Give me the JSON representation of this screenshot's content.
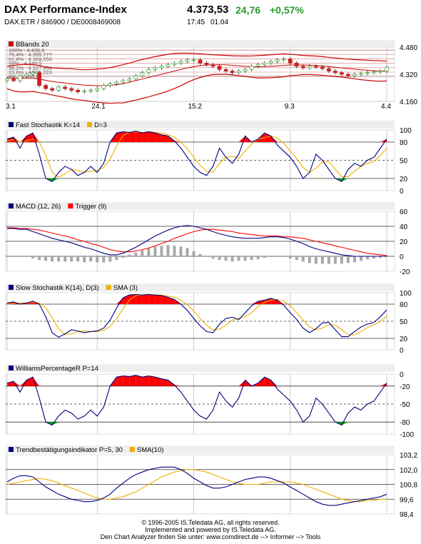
{
  "header": {
    "title": "DAX Performance-Index",
    "subtitle": "DAX.ETR  /  846900  /  DE0008469008",
    "last": "4.373,53",
    "change": "24,76",
    "change_pct": "+0,57%",
    "time": "17:45",
    "date": "01.04"
  },
  "footer": {
    "line1": "© 1996-2005 IS.Teledata AG, all rights reserved.",
    "line2": "Implemented and powered by IS.Teledata AG.",
    "line3": "Den Chart Analyzer finden Sie unter: www.comdirect.de --> Informer --> Tools"
  },
  "colors": {
    "panel_bg": "#eeeeee",
    "grid": "#cccccc",
    "blue": "#000080",
    "red": "#ff0000",
    "orange": "#f0b000",
    "green": "#00aa00",
    "darkred": "#cc0000",
    "bar_gray": "#a8a8a8",
    "candle_green": "#4cb24c",
    "candle_red": "#cc2020"
  },
  "chart_data": [
    {
      "type": "candlestick",
      "legend": [
        {
          "name": "BBands 20",
          "color": "#cc0000"
        }
      ],
      "ylim": [
        4160,
        4500
      ],
      "yticks": [
        "4.480",
        "4.320",
        "4.160"
      ],
      "xticks": [
        "3.1",
        "24.1",
        "15.2",
        "9.3",
        "4.4"
      ],
      "x_tick_index": [
        0,
        14,
        29,
        44,
        59
      ],
      "annotations": [
        "100% : 4.436,6",
        "76,4% : 4.395,777",
        "61,8% : 4.369,550",
        "50% : 4.348,5",
        "38,2% : 4.327,950",
        "23,6% : 4.301,223",
        "0% : 4.260,8"
      ],
      "close": [
        4300,
        4290,
        4320,
        4330,
        4340,
        4260,
        4240,
        4230,
        4250,
        4240,
        4230,
        4220,
        4225,
        4230,
        4240,
        4260,
        4270,
        4280,
        4290,
        4300,
        4320,
        4340,
        4360,
        4370,
        4380,
        4390,
        4400,
        4410,
        4420,
        4420,
        4400,
        4390,
        4380,
        4360,
        4350,
        4340,
        4350,
        4360,
        4380,
        4390,
        4400,
        4410,
        4420,
        4425,
        4400,
        4380,
        4370,
        4380,
        4375,
        4365,
        4350,
        4340,
        4330,
        4320,
        4330,
        4335,
        4340,
        4345,
        4350,
        4374
      ],
      "bb_upper": [
        4380,
        4385,
        4390,
        4392,
        4390,
        4385,
        4375,
        4370,
        4368,
        4365,
        4365,
        4360,
        4358,
        4360,
        4362,
        4365,
        4372,
        4380,
        4390,
        4400,
        4412,
        4422,
        4432,
        4440,
        4448,
        4455,
        4460,
        4462,
        4462,
        4460,
        4458,
        4455,
        4452,
        4450,
        4448,
        4446,
        4445,
        4444,
        4445,
        4447,
        4449,
        4452,
        4455,
        4458,
        4455,
        4452,
        4448,
        4446,
        4444,
        4440,
        4436,
        4432,
        4428,
        4425,
        4422,
        4420,
        4418,
        4416,
        4414,
        4412
      ],
      "bb_mid": [
        4310,
        4305,
        4305,
        4306,
        4306,
        4300,
        4292,
        4285,
        4280,
        4275,
        4270,
        4265,
        4262,
        4260,
        4258,
        4258,
        4260,
        4265,
        4270,
        4280,
        4290,
        4300,
        4310,
        4320,
        4330,
        4340,
        4350,
        4360,
        4370,
        4378,
        4384,
        4388,
        4390,
        4390,
        4389,
        4386,
        4383,
        4380,
        4378,
        4377,
        4378,
        4380,
        4383,
        4386,
        4388,
        4388,
        4388,
        4387,
        4385,
        4382,
        4378,
        4374,
        4370,
        4366,
        4362,
        4358,
        4355,
        4352,
        4350,
        4350
      ],
      "bb_lower": [
        4240,
        4225,
        4220,
        4220,
        4222,
        4215,
        4209,
        4200,
        4192,
        4185,
        4175,
        4170,
        4166,
        4160,
        4154,
        4151,
        4148,
        4150,
        4150,
        4160,
        4168,
        4178,
        4188,
        4200,
        4212,
        4225,
        4240,
        4258,
        4278,
        4296,
        4310,
        4321,
        4328,
        4330,
        4330,
        4326,
        4321,
        4316,
        4311,
        4307,
        4307,
        4308,
        4311,
        4314,
        4321,
        4324,
        4328,
        4328,
        4326,
        4324,
        4320,
        4316,
        4312,
        4307,
        4302,
        4296,
        4292,
        4288,
        4286,
        4288
      ]
    },
    {
      "type": "line",
      "legend": [
        {
          "name": "Fast Stochastik K=14",
          "color": "#000080"
        },
        {
          "name": "D=3",
          "color": "#f0b000"
        }
      ],
      "ylim": [
        0,
        100
      ],
      "yticks": [
        "100",
        "80",
        "50",
        "20",
        "0"
      ],
      "levels": [
        80,
        50,
        20
      ],
      "series": [
        {
          "name": "K",
          "values": [
            85,
            88,
            70,
            90,
            95,
            60,
            20,
            15,
            30,
            40,
            35,
            25,
            30,
            40,
            30,
            45,
            80,
            95,
            97,
            96,
            98,
            95,
            97,
            95,
            92,
            90,
            82,
            70,
            55,
            40,
            30,
            25,
            40,
            70,
            55,
            45,
            60,
            90,
            80,
            85,
            95,
            90,
            75,
            65,
            55,
            40,
            20,
            30,
            60,
            50,
            35,
            20,
            15,
            35,
            45,
            40,
            50,
            55,
            70,
            85
          ]
        },
        {
          "name": "D",
          "values": [
            82,
            84,
            80,
            82,
            85,
            80,
            58,
            30,
            22,
            28,
            35,
            33,
            30,
            32,
            33,
            38,
            52,
            73,
            91,
            96,
            97,
            96,
            97,
            96,
            95,
            92,
            88,
            80,
            69,
            55,
            42,
            32,
            30,
            45,
            55,
            57,
            53,
            65,
            77,
            85,
            87,
            90,
            87,
            78,
            65,
            53,
            38,
            30,
            37,
            47,
            48,
            35,
            23,
            23,
            32,
            40,
            45,
            48,
            58,
            70
          ]
        }
      ]
    },
    {
      "type": "line",
      "legend": [
        {
          "name": "MACD (12, 26)",
          "color": "#000080"
        },
        {
          "name": "Trigger (9)",
          "color": "#ff0000"
        }
      ],
      "ylim": [
        -20,
        60
      ],
      "yticks": [
        "60",
        "40",
        "20",
        "0",
        "-20"
      ],
      "levels": [
        40,
        20,
        0
      ],
      "series": [
        {
          "name": "MACD",
          "values": [
            37,
            37,
            36,
            36,
            33,
            30,
            27,
            24,
            22,
            20,
            18,
            15,
            12,
            10,
            7,
            4,
            2,
            2,
            4,
            8,
            12,
            17,
            22,
            27,
            31,
            35,
            38,
            40,
            41,
            40,
            38,
            36,
            33,
            30,
            28,
            26,
            25,
            24,
            24,
            24,
            25,
            26,
            26,
            25,
            23,
            20,
            17,
            13,
            10,
            8,
            6,
            4,
            2,
            1,
            0,
            0,
            0,
            0,
            0,
            0
          ]
        },
        {
          "name": "Trigger",
          "values": [
            38,
            38,
            37,
            37,
            36,
            35,
            33,
            31,
            29,
            27,
            25,
            22,
            20,
            17,
            15,
            12,
            9,
            7,
            6,
            6,
            7,
            9,
            11,
            14,
            17,
            20,
            24,
            27,
            30,
            33,
            35,
            36,
            36,
            35,
            34,
            33,
            31,
            30,
            29,
            28,
            27,
            27,
            27,
            26,
            26,
            25,
            24,
            22,
            20,
            18,
            16,
            14,
            12,
            10,
            8,
            6,
            4,
            3,
            2,
            1
          ]
        },
        {
          "name": "Histogram",
          "values": [
            -1,
            -1,
            -1,
            -1,
            -3,
            -5,
            -6,
            -7,
            -7,
            -7,
            -7,
            -7,
            -8,
            -7,
            -8,
            -8,
            -7,
            -5,
            -2,
            2,
            5,
            8,
            11,
            13,
            14,
            15,
            14,
            13,
            11,
            7,
            3,
            0,
            -3,
            -5,
            -6,
            -7,
            -6,
            -6,
            -5,
            -4,
            -2,
            -1,
            -1,
            -1,
            -3,
            -5,
            -7,
            -9,
            -10,
            -10,
            -10,
            -10,
            -10,
            -9,
            -8,
            -6,
            -4,
            -3,
            -2,
            -1
          ]
        }
      ]
    },
    {
      "type": "line",
      "legend": [
        {
          "name": "Slow Stochastik K(14), D(3)",
          "color": "#000080"
        },
        {
          "name": "SMA (3)",
          "color": "#f0b000"
        }
      ],
      "ylim": [
        0,
        100
      ],
      "yticks": [
        "100",
        "80",
        "50",
        "20",
        "0"
      ],
      "levels": [
        80,
        50,
        20
      ],
      "series": [
        {
          "name": "K",
          "values": [
            82,
            84,
            80,
            82,
            85,
            80,
            58,
            30,
            22,
            28,
            35,
            33,
            30,
            32,
            33,
            38,
            52,
            73,
            91,
            96,
            97,
            96,
            97,
            96,
            95,
            92,
            88,
            80,
            69,
            55,
            42,
            32,
            30,
            45,
            55,
            57,
            53,
            65,
            77,
            85,
            87,
            90,
            87,
            78,
            65,
            53,
            38,
            30,
            37,
            47,
            48,
            35,
            23,
            23,
            32,
            40,
            45,
            48,
            58,
            70
          ]
        },
        {
          "name": "SMA",
          "values": [
            80,
            82,
            82,
            82,
            83,
            82,
            74,
            56,
            37,
            27,
            28,
            32,
            33,
            32,
            32,
            34,
            41,
            54,
            72,
            87,
            95,
            96,
            97,
            96,
            96,
            94,
            92,
            87,
            79,
            68,
            55,
            43,
            35,
            36,
            43,
            52,
            55,
            58,
            65,
            76,
            83,
            87,
            88,
            85,
            77,
            65,
            52,
            40,
            35,
            38,
            44,
            43,
            35,
            27,
            26,
            32,
            39,
            44,
            50,
            59
          ]
        }
      ]
    },
    {
      "type": "line",
      "legend": [
        {
          "name": "WilliamsPercentageR P=14",
          "color": "#000080"
        }
      ],
      "ylim": [
        -100,
        0
      ],
      "yticks": [
        "0",
        "-20",
        "-50",
        "-80",
        "-100"
      ],
      "levels": [
        -20,
        -50,
        -80
      ],
      "series": [
        {
          "name": "%R",
          "values": [
            -15,
            -12,
            -30,
            -10,
            -5,
            -40,
            -80,
            -85,
            -70,
            -60,
            -65,
            -75,
            -70,
            -60,
            -70,
            -55,
            -20,
            -5,
            -3,
            -4,
            -2,
            -5,
            -3,
            -5,
            -8,
            -10,
            -18,
            -30,
            -45,
            -60,
            -70,
            -75,
            -60,
            -30,
            -45,
            -55,
            -40,
            -10,
            -20,
            -15,
            -5,
            -10,
            -25,
            -35,
            -45,
            -60,
            -80,
            -70,
            -40,
            -50,
            -65,
            -80,
            -85,
            -65,
            -55,
            -60,
            -50,
            -45,
            -30,
            -15
          ]
        }
      ]
    },
    {
      "type": "line",
      "legend": [
        {
          "name": "Trendbestätigungsindikator P=5, 30",
          "color": "#000080"
        },
        {
          "name": "SMA(10)",
          "color": "#f0b000"
        }
      ],
      "ylim": [
        98.4,
        103.2
      ],
      "yticks": [
        "103,2",
        "102,0",
        "100,8",
        "99,6",
        "98,4"
      ],
      "levels": [
        102.0,
        100.8,
        99.6
      ],
      "series": [
        {
          "name": "TBI",
          "values": [
            101.0,
            101.3,
            101.5,
            101.5,
            101.4,
            101.0,
            100.6,
            100.3,
            100.0,
            99.8,
            99.6,
            99.5,
            99.4,
            99.4,
            99.5,
            99.7,
            100.0,
            100.5,
            100.9,
            101.3,
            101.6,
            101.8,
            102.0,
            102.1,
            102.2,
            102.2,
            102.2,
            102.0,
            101.7,
            101.3,
            101.0,
            100.7,
            100.5,
            100.5,
            100.6,
            100.8,
            101.0,
            101.2,
            101.3,
            101.4,
            101.4,
            101.3,
            101.1,
            100.9,
            100.6,
            100.3,
            100.0,
            99.7,
            99.4,
            99.2,
            99.1,
            99.1,
            99.2,
            99.3,
            99.4,
            99.5,
            99.6,
            99.7,
            99.8,
            100.0
          ]
        },
        {
          "name": "SMA",
          "values": [
            100.8,
            100.9,
            101.0,
            101.1,
            101.2,
            101.3,
            101.2,
            101.1,
            100.9,
            100.7,
            100.5,
            100.3,
            100.1,
            99.9,
            99.7,
            99.6,
            99.6,
            99.7,
            99.8,
            100.0,
            100.2,
            100.5,
            100.8,
            101.1,
            101.4,
            101.6,
            101.8,
            101.9,
            102.0,
            102.0,
            101.9,
            101.8,
            101.6,
            101.4,
            101.2,
            101.0,
            100.9,
            100.8,
            100.8,
            100.8,
            100.9,
            101.0,
            101.0,
            101.0,
            101.0,
            100.9,
            100.8,
            100.6,
            100.4,
            100.2,
            100.0,
            99.8,
            99.6,
            99.5,
            99.4,
            99.4,
            99.5,
            99.5,
            99.6,
            99.6
          ]
        }
      ]
    }
  ]
}
